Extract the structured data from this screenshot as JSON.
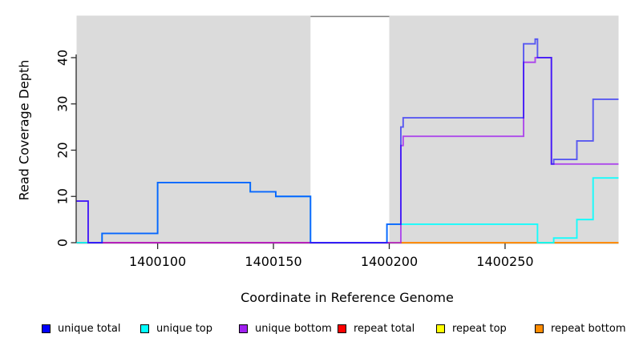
{
  "figure": {
    "xlabel": "Coordinate in Reference Genome",
    "ylabel": "Read Coverage Depth"
  },
  "chart_data": {
    "type": "line",
    "subtype": "step-coverage",
    "title": "",
    "xlabel": "Coordinate in Reference Genome",
    "ylabel": "Read Coverage Depth",
    "xlim": [
      1400065,
      1400299
    ],
    "ylim": [
      0,
      49
    ],
    "x_ticks": [
      1400100,
      1400150,
      1400200,
      1400250
    ],
    "y_ticks": [
      0,
      10,
      20,
      30,
      40
    ],
    "grid": false,
    "background_regions": {
      "fill": "#dbdbdb",
      "regions": [
        [
          1400065,
          1400166
        ],
        [
          1400200,
          1400299
        ]
      ]
    },
    "gap_frame_segment": [
      1400166,
      1400200
    ],
    "series": [
      {
        "name": "repeat top",
        "color": "#FFFF00",
        "opacity": 1,
        "points": [
          [
            1400065,
            0
          ],
          [
            1400299,
            0
          ]
        ]
      },
      {
        "name": "repeat total",
        "color": "#FF0000",
        "opacity": 0.85,
        "points": [
          [
            1400065,
            0
          ],
          [
            1400200,
            0
          ]
        ]
      },
      {
        "name": "repeat bottom",
        "color": "#FF8C00",
        "opacity": 1,
        "points": [
          [
            1400200,
            0
          ],
          [
            1400299,
            0
          ]
        ]
      },
      {
        "name": "unique top",
        "color": "#00FFFF",
        "opacity": 0.9,
        "points": [
          [
            1400065,
            0
          ],
          [
            1400076,
            2
          ],
          [
            1400100,
            13
          ],
          [
            1400140,
            11
          ],
          [
            1400151,
            10
          ],
          [
            1400166,
            0
          ],
          [
            1400199,
            4
          ],
          [
            1400264,
            0
          ],
          [
            1400271,
            1
          ],
          [
            1400281,
            5
          ],
          [
            1400288,
            14
          ],
          [
            1400299,
            14
          ]
        ]
      },
      {
        "name": "unique bottom",
        "color": "#A020F0",
        "opacity": 0.78,
        "points": [
          [
            1400065,
            9
          ],
          [
            1400070,
            0
          ],
          [
            1400205,
            21
          ],
          [
            1400206,
            23
          ],
          [
            1400258,
            39
          ],
          [
            1400263,
            40
          ],
          [
            1400270,
            17
          ],
          [
            1400299,
            17
          ]
        ]
      },
      {
        "name": "unique total",
        "color": "#0000FF",
        "opacity": 0.6,
        "points": [
          [
            1400065,
            9
          ],
          [
            1400070,
            0
          ],
          [
            1400076,
            2
          ],
          [
            1400100,
            13
          ],
          [
            1400140,
            11
          ],
          [
            1400151,
            10
          ],
          [
            1400166,
            0
          ],
          [
            1400199,
            4
          ],
          [
            1400205,
            25
          ],
          [
            1400206,
            27
          ],
          [
            1400258,
            43
          ],
          [
            1400263,
            44
          ],
          [
            1400264,
            40
          ],
          [
            1400270,
            17
          ],
          [
            1400271,
            18
          ],
          [
            1400281,
            22
          ],
          [
            1400288,
            31
          ],
          [
            1400299,
            31
          ]
        ]
      }
    ],
    "legend": {
      "position": "bottom",
      "entries": [
        {
          "label": "unique total",
          "color": "#0000FF"
        },
        {
          "label": "unique top",
          "color": "#00FFFF"
        },
        {
          "label": "unique bottom",
          "color": "#A020F0"
        },
        {
          "label": "repeat total",
          "color": "#FF0000"
        },
        {
          "label": "repeat top",
          "color": "#FFFF00"
        },
        {
          "label": "repeat bottom",
          "color": "#FF8C00"
        }
      ]
    }
  }
}
